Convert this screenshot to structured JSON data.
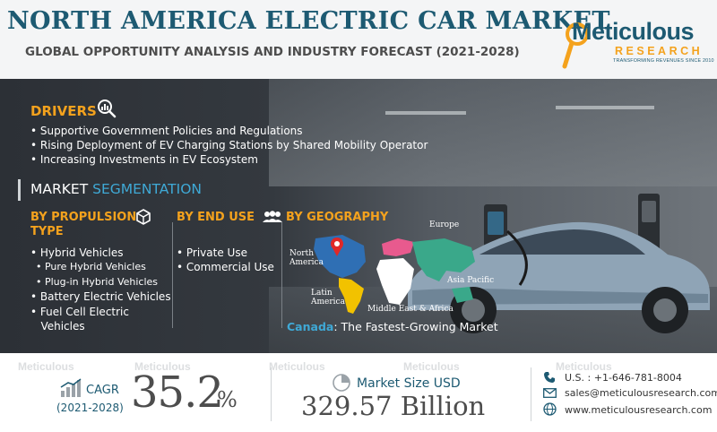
{
  "header": {
    "title": "NORTH AMERICA ELECTRIC CAR MARKET",
    "subtitle": "GLOBAL OPPORTUNITY ANALYSIS AND INDUSTRY FORECAST (2021-2028)",
    "logo": {
      "main": "Meticulous",
      "research": "RESEARCH",
      "tagline": "TRANSFORMING REVENUES SINCE 2010"
    }
  },
  "drivers": {
    "heading": "DRIVERS",
    "items": [
      "• Supportive Government Policies and Regulations",
      "• Rising Deployment of EV Charging Stations by Shared Mobility Operator",
      "• Increasing Investments in EV Ecosystem"
    ]
  },
  "segmentation": {
    "title_part1": "MARKET ",
    "title_part2": "SEGMENTATION",
    "propulsion": {
      "heading_line1": "BY PROPULSION",
      "heading_line2": "TYPE",
      "items": [
        {
          "text": "• Hybrid Vehicles",
          "level": 0
        },
        {
          "text": "• Pure Hybrid Vehicles",
          "level": 1
        },
        {
          "text": "• Plug-in Hybrid Vehicles",
          "level": 1
        },
        {
          "text": "• Battery Electric Vehicles",
          "level": 0
        },
        {
          "text": "• Fuel Cell Electric",
          "level": 0
        },
        {
          "text": "   Vehicles",
          "level": 0
        }
      ]
    },
    "end_use": {
      "heading": "BY END USE",
      "items": [
        "• Private Use",
        "• Commercial Use"
      ]
    },
    "geography": {
      "heading": "BY GEOGRAPHY",
      "regions": {
        "north_america_1": "North",
        "north_america_2": "America",
        "europe": "Europe",
        "asia_pacific": "Asia Pacific",
        "latin_america_1": "Latin",
        "latin_america_2": "America",
        "mea": "Middle East & Africa"
      },
      "region_colors": {
        "north_america": "#2f6fb4",
        "europe": "#e85a8e",
        "asia_pacific": "#3aa88a",
        "latin_america": "#f2c200",
        "mea": "#ffffff"
      }
    }
  },
  "fastest": {
    "country": "Canada",
    "sep": ": ",
    "text": "The Fastest-Growing Market"
  },
  "footer": {
    "cagr_label": "CAGR",
    "cagr_years": "(2021-2028)",
    "cagr_value": "35.2",
    "cagr_unit": "%",
    "market_label": "Market Size USD",
    "market_value": "329.57 Billion",
    "phone": "U.S. : +1-646-781-8004",
    "email": "sales@meticulousresearch.com",
    "website": "www.meticulousresearch.com",
    "watermark": "Meticulous"
  },
  "colors": {
    "primary": "#1d5a72",
    "accent": "#f4a21d",
    "highlight": "#3fa9d6"
  }
}
